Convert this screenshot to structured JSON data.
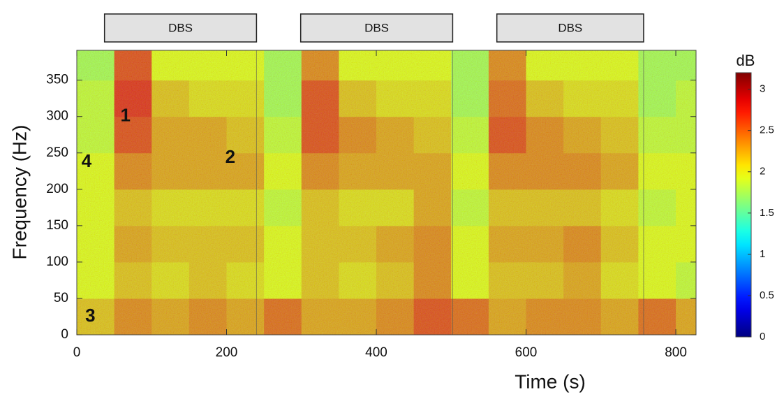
{
  "chart_data": {
    "type": "heatmap",
    "xlabel": "Time (s)",
    "ylabel": "Frequency (Hz)",
    "colorbar_label": "dB",
    "xlim": [
      0,
      827
    ],
    "ylim": [
      0,
      391
    ],
    "xticks": [
      0,
      200,
      400,
      600,
      800
    ],
    "yticks": [
      0,
      50,
      100,
      150,
      200,
      250,
      300,
      350
    ],
    "clim": [
      0,
      3.2
    ],
    "cticks": [
      0,
      0.5,
      1,
      1.5,
      2,
      2.5,
      3
    ],
    "colormap": "jet",
    "x": [
      25,
      75,
      125,
      175,
      225,
      275,
      325,
      375,
      425,
      475,
      525,
      575,
      625,
      675,
      725,
      775,
      825
    ],
    "y": [
      25,
      75,
      125,
      175,
      225,
      275,
      325,
      375
    ],
    "z": [
      [
        2.2,
        2.4,
        2.3,
        2.4,
        2.3,
        2.5,
        2.3,
        2.3,
        2.4,
        2.6,
        2.5,
        2.3,
        2.4,
        2.4,
        2.3,
        2.5,
        2.3
      ],
      [
        2.0,
        2.2,
        2.1,
        2.2,
        2.1,
        2.0,
        2.2,
        2.1,
        2.2,
        2.4,
        2.0,
        2.2,
        2.2,
        2.3,
        2.1,
        2.0,
        1.9
      ],
      [
        2.0,
        2.3,
        2.2,
        2.2,
        2.2,
        2.0,
        2.2,
        2.2,
        2.3,
        2.4,
        2.0,
        2.3,
        2.3,
        2.4,
        2.2,
        2.0,
        2.0
      ],
      [
        2.0,
        2.2,
        2.1,
        2.1,
        2.1,
        1.9,
        2.2,
        2.1,
        2.1,
        2.3,
        1.9,
        2.2,
        2.2,
        2.2,
        2.1,
        1.9,
        2.0
      ],
      [
        2.0,
        2.4,
        2.3,
        2.3,
        2.3,
        2.0,
        2.4,
        2.3,
        2.3,
        2.3,
        2.0,
        2.4,
        2.4,
        2.4,
        2.3,
        2.0,
        2.0
      ],
      [
        1.9,
        2.6,
        2.3,
        2.3,
        2.2,
        1.9,
        2.6,
        2.4,
        2.3,
        2.2,
        1.9,
        2.6,
        2.4,
        2.3,
        2.2,
        1.9,
        1.9
      ],
      [
        1.9,
        2.7,
        2.2,
        2.1,
        2.1,
        1.8,
        2.6,
        2.2,
        2.1,
        2.1,
        1.8,
        2.5,
        2.2,
        2.1,
        2.1,
        1.8,
        1.9
      ],
      [
        1.8,
        2.6,
        2.0,
        2.0,
        2.0,
        1.8,
        2.4,
        2.0,
        2.0,
        2.0,
        1.8,
        2.4,
        2.0,
        2.0,
        2.0,
        1.8,
        1.8
      ]
    ],
    "stimulation": [
      {
        "label": "DBS",
        "start": 37,
        "end": 240
      },
      {
        "label": "DBS",
        "start": 299,
        "end": 502
      },
      {
        "label": "DBS",
        "start": 561,
        "end": 757
      }
    ],
    "annotations": [
      {
        "text": "1",
        "x": 65,
        "y": 300
      },
      {
        "text": "2",
        "x": 205,
        "y": 243
      },
      {
        "text": "3",
        "x": 18,
        "y": 25
      },
      {
        "text": "4",
        "x": 13,
        "y": 237
      }
    ]
  }
}
